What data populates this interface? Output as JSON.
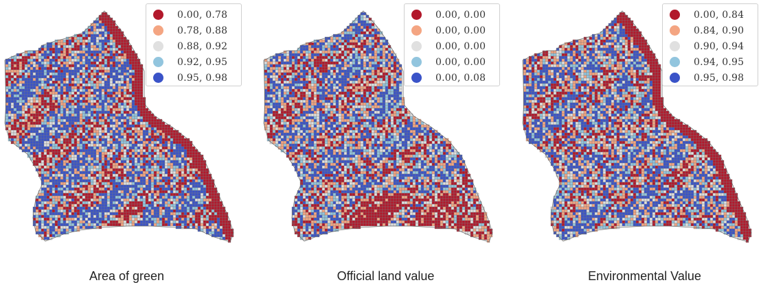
{
  "colors": [
    "#b2182b",
    "#f4a582",
    "#e0e0e0",
    "#92c5de",
    "#3a53c8"
  ],
  "panels": [
    {
      "caption": "Area of green",
      "legend": [
        "0.00, 0.78",
        "0.78, 0.88",
        "0.88, 0.92",
        "0.92, 0.95",
        "0.95, 0.98"
      ]
    },
    {
      "caption": "Official land value",
      "legend": [
        "0.00, 0.00",
        "0.00, 0.00",
        "0.00, 0.00",
        "0.00, 0.00",
        "0.00, 0.08"
      ]
    },
    {
      "caption": "Environmental Value",
      "legend": [
        "0.00, 0.84",
        "0.84, 0.90",
        "0.90, 0.94",
        "0.94, 0.95",
        "0.95, 0.98"
      ]
    }
  ]
}
